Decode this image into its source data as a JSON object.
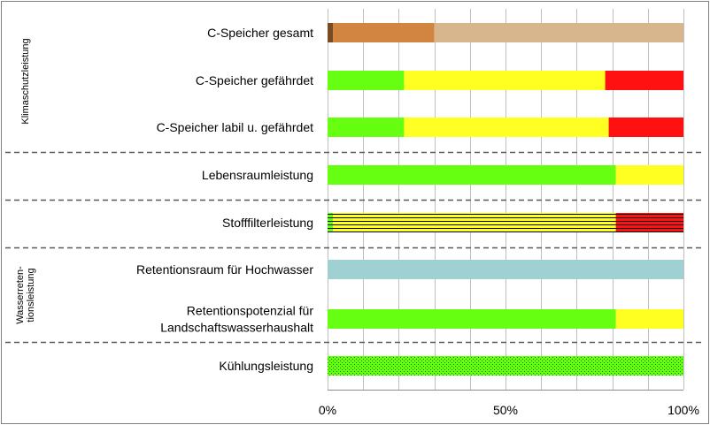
{
  "chart_data": {
    "type": "bar",
    "orientation": "horizontal",
    "stacked": true,
    "xlim": [
      0,
      100
    ],
    "x_ticks": [
      "0%",
      "50%",
      "100%"
    ],
    "grid": "vertical",
    "groups": [
      {
        "name": "Klimaschutzleistung",
        "categories": [
          "C-Speicher gesamt",
          "C-Speicher gefährdet",
          "C-Speicher labil u. gefährdet"
        ]
      },
      {
        "name": "",
        "categories": [
          "Lebensraumleistung"
        ]
      },
      {
        "name": "",
        "categories": [
          "Stofffilterleistung"
        ]
      },
      {
        "name": "Wasserreten-\ntionsleistung",
        "categories": [
          "Retentionsraum für Hochwasser",
          "Retentionspotenzial für\nLandschaftswasserhaushalt"
        ]
      },
      {
        "name": "",
        "categories": [
          "Kühlungsleistung"
        ]
      }
    ],
    "bars": [
      {
        "category": "C-Speicher gesamt",
        "segments": [
          {
            "value": 1.5,
            "color": "#7a4a22",
            "pattern": "solid"
          },
          {
            "value": 28.5,
            "color": "#d18540",
            "pattern": "solid"
          },
          {
            "value": 70,
            "color": "#d7b68e",
            "pattern": "solid"
          }
        ]
      },
      {
        "category": "C-Speicher gefährdet",
        "segments": [
          {
            "value": 21.5,
            "color": "#66ff11",
            "pattern": "solid"
          },
          {
            "value": 56.5,
            "color": "#ffff22",
            "pattern": "solid"
          },
          {
            "value": 22,
            "color": "#ff1111",
            "pattern": "solid"
          }
        ]
      },
      {
        "category": "C-Speicher labil u. gefährdet",
        "segments": [
          {
            "value": 21.5,
            "color": "#66ff11",
            "pattern": "solid"
          },
          {
            "value": 57.5,
            "color": "#ffff22",
            "pattern": "solid"
          },
          {
            "value": 21,
            "color": "#ff1111",
            "pattern": "solid"
          }
        ]
      },
      {
        "category": "Lebensraumleistung",
        "segments": [
          {
            "value": 81,
            "color": "#66ff11",
            "pattern": "solid"
          },
          {
            "value": 19,
            "color": "#ffff22",
            "pattern": "solid"
          }
        ]
      },
      {
        "category": "Stofffilterleistung",
        "segments": [
          {
            "value": 1.5,
            "color": "#66ff11",
            "pattern": "hatched"
          },
          {
            "value": 79.5,
            "color": "#ffff22",
            "pattern": "hatched"
          },
          {
            "value": 19,
            "color": "#ff1111",
            "pattern": "hatched"
          }
        ]
      },
      {
        "category": "Retentionsraum für Hochwasser",
        "segments": [
          {
            "value": 100,
            "color": "#9fd0d2",
            "pattern": "solid"
          }
        ]
      },
      {
        "category": "Retentionspotenzial für\nLandschaftswasserhaushalt",
        "segments": [
          {
            "value": 81,
            "color": "#66ff11",
            "pattern": "solid"
          },
          {
            "value": 19,
            "color": "#ffff22",
            "pattern": "solid"
          }
        ]
      },
      {
        "category": "Kühlungsleistung",
        "segments": [
          {
            "value": 100,
            "color": "#66ff11",
            "pattern": "dotted"
          }
        ]
      }
    ]
  }
}
